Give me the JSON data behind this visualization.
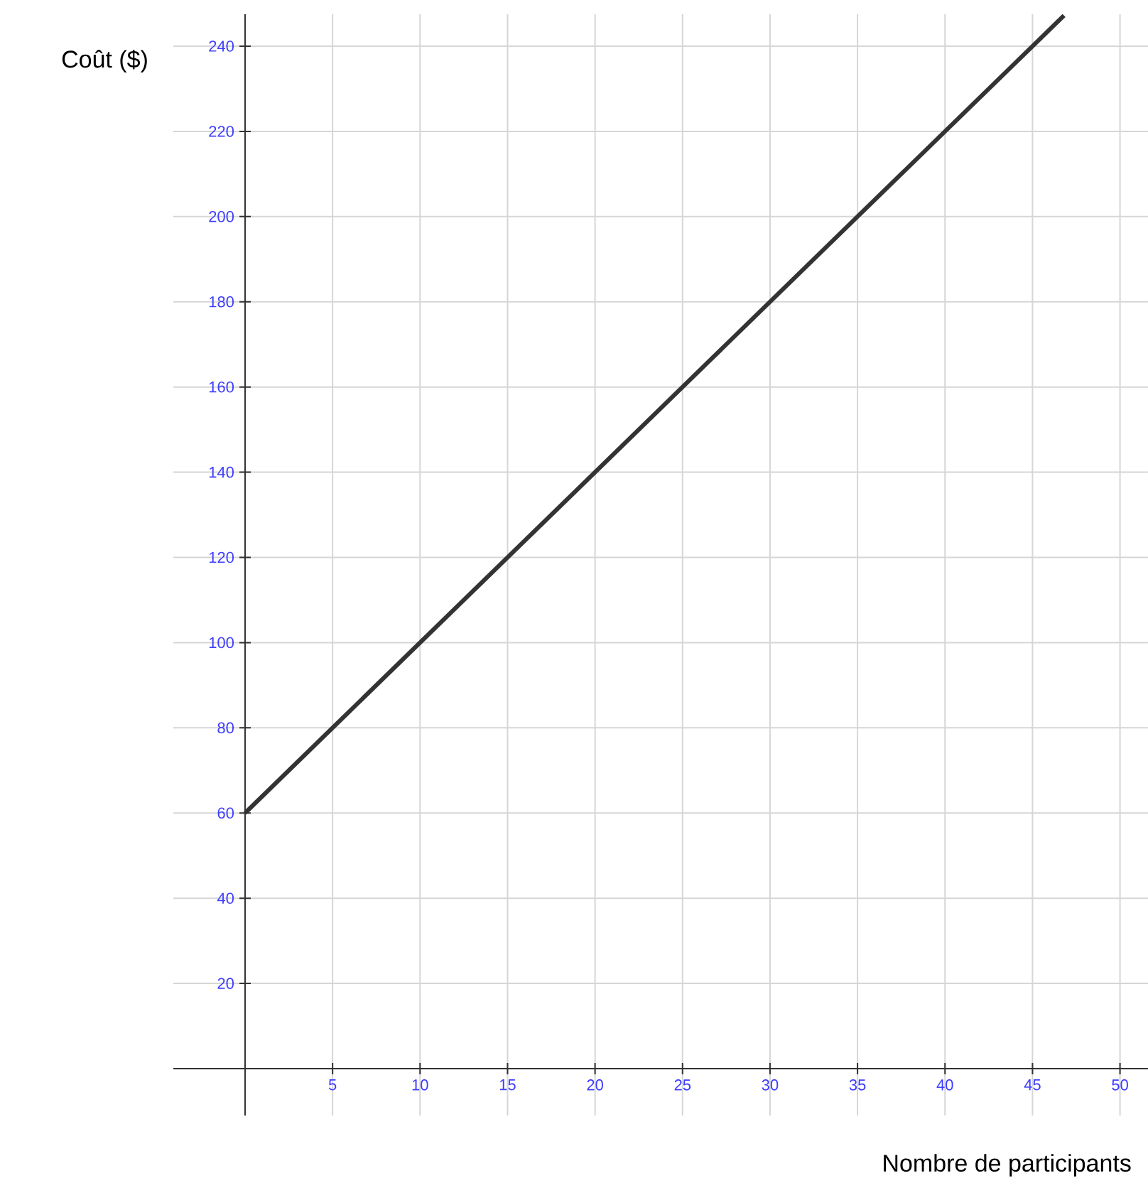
{
  "chart_data": {
    "type": "line",
    "xlabel": "Nombre de participants",
    "ylabel": "Coût ($)",
    "x": [
      0,
      46.8
    ],
    "series": [
      {
        "color": "#333333",
        "values": [
          60,
          247.2
        ]
      }
    ],
    "xlim": [
      -4.1,
      51.6
    ],
    "ylim": [
      -11,
      247.5
    ],
    "xticks": [
      5,
      10,
      15,
      20,
      25,
      30,
      35,
      40,
      45,
      50
    ],
    "yticks": [
      20,
      40,
      60,
      80,
      100,
      120,
      140,
      160,
      180,
      200,
      220,
      240
    ],
    "grid": true
  }
}
